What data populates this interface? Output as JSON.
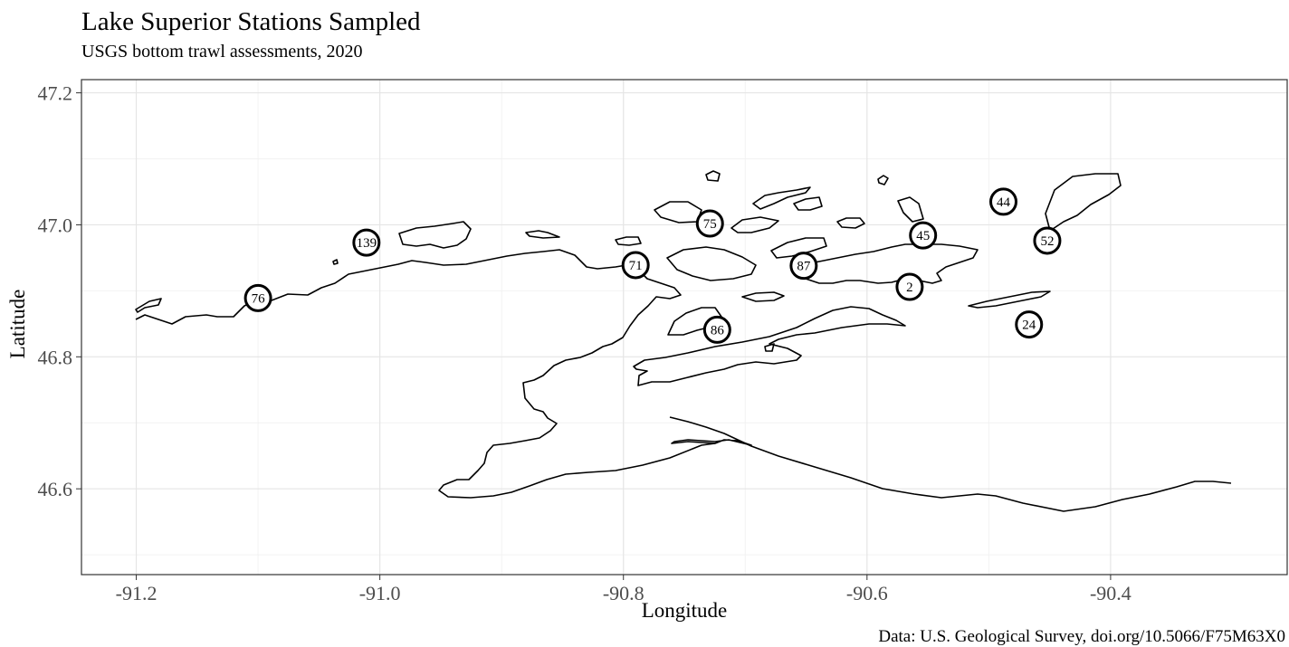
{
  "title": "Lake Superior Stations Sampled",
  "subtitle": "USGS bottom trawl assessments, 2020",
  "caption": "Data: U.S. Geological Survey, doi.org/10.5066/F75M63X0",
  "chart_data": {
    "type": "scatter",
    "xlabel": "Longitude",
    "ylabel": "Latitude",
    "xlim": [
      -91.245,
      -90.255
    ],
    "ylim": [
      46.47,
      47.22
    ],
    "x_ticks": [
      -91.2,
      -91.0,
      -90.8,
      -90.6,
      -90.4
    ],
    "x_tick_labels": [
      "-91.2",
      "-91.0",
      "-90.8",
      "-90.6",
      "-90.4"
    ],
    "y_ticks": [
      46.6,
      46.8,
      47.0,
      47.2
    ],
    "y_tick_labels": [
      "46.6",
      "46.8",
      "47.0",
      "47.2"
    ],
    "grid": true,
    "stations": [
      {
        "label": "139",
        "lon": -91.011,
        "lat": 46.973
      },
      {
        "label": "76",
        "lon": -91.1,
        "lat": 46.889
      },
      {
        "label": "71",
        "lon": -90.79,
        "lat": 46.939
      },
      {
        "label": "75",
        "lon": -90.729,
        "lat": 47.002
      },
      {
        "label": "86",
        "lon": -90.723,
        "lat": 46.841
      },
      {
        "label": "87",
        "lon": -90.652,
        "lat": 46.938
      },
      {
        "label": "2",
        "lon": -90.565,
        "lat": 46.906
      },
      {
        "label": "45",
        "lon": -90.554,
        "lat": 46.984
      },
      {
        "label": "44",
        "lon": -90.488,
        "lat": 47.035
      },
      {
        "label": "52",
        "lon": -90.452,
        "lat": 46.976
      },
      {
        "label": "24",
        "lon": -90.467,
        "lat": 46.849
      }
    ]
  }
}
